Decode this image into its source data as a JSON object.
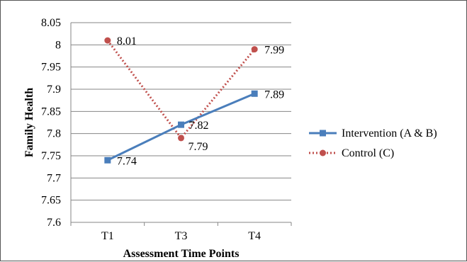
{
  "chart_data": {
    "type": "line",
    "xlabel": "Assessment Time Points",
    "ylabel": "Family Health",
    "categories": [
      "T1",
      "T3",
      "T4"
    ],
    "ylim": [
      7.6,
      8.05
    ],
    "yticks": [
      "8.05",
      "8",
      "7.95",
      "7.9",
      "7.85",
      "7.8",
      "7.75",
      "7.7",
      "7.65",
      "7.6"
    ],
    "grid": "horizontal",
    "legend_position": "right",
    "series": [
      {
        "name": "Intervention (A & B)",
        "values": [
          7.74,
          7.82,
          7.89
        ],
        "labels": [
          "7.74",
          "7.82",
          "7.89"
        ],
        "color": "#4A7EBB",
        "marker": "square",
        "line_style": "solid"
      },
      {
        "name": "Control (C)",
        "values": [
          8.01,
          7.79,
          7.99
        ],
        "labels": [
          "8.01",
          "7.79",
          "7.99"
        ],
        "color": "#C0504D",
        "marker": "circle",
        "line_style": "dotted"
      }
    ]
  }
}
